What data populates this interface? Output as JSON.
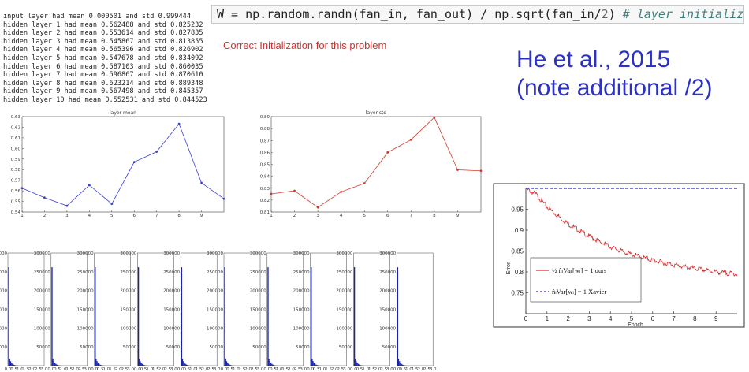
{
  "log_lines": [
    "input layer had mean 0.000501 and std 0.999444",
    "hidden layer 1 had mean 0.562488 and std 0.825232",
    "hidden layer 2 had mean 0.553614 and std 0.827835",
    "hidden layer 3 had mean 0.545867 and std 0.813855",
    "hidden layer 4 had mean 0.565396 and std 0.826902",
    "hidden layer 5 had mean 0.547678 and std 0.834092",
    "hidden layer 6 had mean 0.587103 and std 0.860035",
    "hidden layer 7 had mean 0.596867 and std 0.870610",
    "hidden layer 8 had mean 0.623214 and std 0.889348",
    "hidden layer 9 had mean 0.567498 and std 0.845357",
    "hidden layer 10 had mean 0.552531 and std 0.844523"
  ],
  "code": {
    "lhs": "W = np.random.randn(fan_in, fan_out) / np.sqrt(fan_in/",
    "num": "2",
    "rhs": ") ",
    "comment": "# layer initialization"
  },
  "caption": "Correct Initialization for this problem",
  "title_lines": [
    "He et al., 2015",
    "(note additional /2)"
  ],
  "colors": {
    "mean_line": "#3b3fd6",
    "std_line": "#d23a2a",
    "hist_fill": "#1a24a8",
    "ours": "#d32a2a",
    "xavier": "#2b2bd0",
    "title": "#2a31c4",
    "caption": "#d0312d"
  },
  "chart_data": [
    {
      "type": "line",
      "title": "layer mean",
      "x": [
        1,
        2,
        3,
        4,
        5,
        6,
        7,
        8,
        9,
        10
      ],
      "values": [
        0.562488,
        0.553614,
        0.545867,
        0.565396,
        0.547678,
        0.587103,
        0.596867,
        0.623214,
        0.567498,
        0.552531
      ],
      "xticks": [
        "1",
        "2",
        "3",
        "4",
        "5",
        "6",
        "7",
        "8",
        "9"
      ],
      "yticks": [
        "0.54",
        "0.55",
        "0.56",
        "0.57",
        "0.58",
        "0.59",
        "0.60",
        "0.61",
        "0.62",
        "0.63"
      ],
      "xlim": [
        1,
        10
      ],
      "ylim": [
        0.54,
        0.63
      ],
      "color": "#3b3fd6"
    },
    {
      "type": "line",
      "title": "layer std",
      "x": [
        1,
        2,
        3,
        4,
        5,
        6,
        7,
        8,
        9,
        10
      ],
      "values": [
        0.825232,
        0.827835,
        0.813855,
        0.826902,
        0.834092,
        0.860035,
        0.87061,
        0.889348,
        0.845357,
        0.844523
      ],
      "xticks": [
        "1",
        "2",
        "3",
        "4",
        "5",
        "6",
        "7",
        "8",
        "9"
      ],
      "yticks": [
        "0.81",
        "0.82",
        "0.83",
        "0.84",
        "0.85",
        "0.86",
        "0.87",
        "0.88",
        "0.89"
      ],
      "xlim": [
        1,
        10
      ],
      "ylim": [
        0.81,
        0.89
      ],
      "color": "#d23a2a"
    },
    {
      "type": "bar",
      "title": "",
      "description": "histograms of activations, one per hidden layer",
      "panels": 10,
      "yticks": [
        "50000",
        "100000",
        "150000",
        "200000",
        "250000",
        "300000"
      ],
      "ylim": [
        0,
        300000
      ],
      "xticks": [
        "0.0",
        "0.5",
        "1.0",
        "1.5",
        "2.0",
        "2.5",
        "3.0"
      ],
      "xlim": [
        0,
        3
      ],
      "zero_bin_counts": [
        262000,
        262000,
        262000,
        262000,
        262000,
        262000,
        262000,
        262000,
        262000,
        262000
      ],
      "tail_profile": [
        18000,
        12000,
        8000,
        5000,
        3000,
        1800,
        1000,
        600,
        300,
        150
      ]
    },
    {
      "type": "line",
      "xlabel": "Epoch",
      "ylabel": "Error",
      "xticks": [
        "0",
        "1",
        "2",
        "3",
        "4",
        "5",
        "6",
        "7",
        "8",
        "9"
      ],
      "yticks": [
        "0.75",
        "0.8",
        "0.85",
        "0.9",
        "0.95"
      ],
      "xlim": [
        0,
        10
      ],
      "ylim": [
        0.7,
        1.0
      ],
      "series": [
        {
          "name": "ours",
          "legend": "½ n̂ₗVar[wₗ] = 1  ours",
          "style": "solid",
          "color": "#d32a2a",
          "x": [
            0,
            0.5,
            1,
            1.5,
            2,
            2.5,
            3,
            3.5,
            4,
            4.5,
            5,
            5.5,
            6,
            6.5,
            7,
            7.5,
            8,
            8.5,
            9,
            9.5,
            10
          ],
          "values": [
            1.0,
            0.985,
            0.955,
            0.935,
            0.915,
            0.9,
            0.885,
            0.872,
            0.86,
            0.85,
            0.842,
            0.835,
            0.828,
            0.822,
            0.817,
            0.812,
            0.808,
            0.804,
            0.8,
            0.797,
            0.795
          ]
        },
        {
          "name": "Xavier",
          "legend": "n̂ₗVar[wₗ] = 1  Xavier",
          "style": "dashed",
          "color": "#2b2bd0",
          "x": [
            0,
            10
          ],
          "values": [
            1.0,
            1.0
          ]
        }
      ]
    }
  ]
}
